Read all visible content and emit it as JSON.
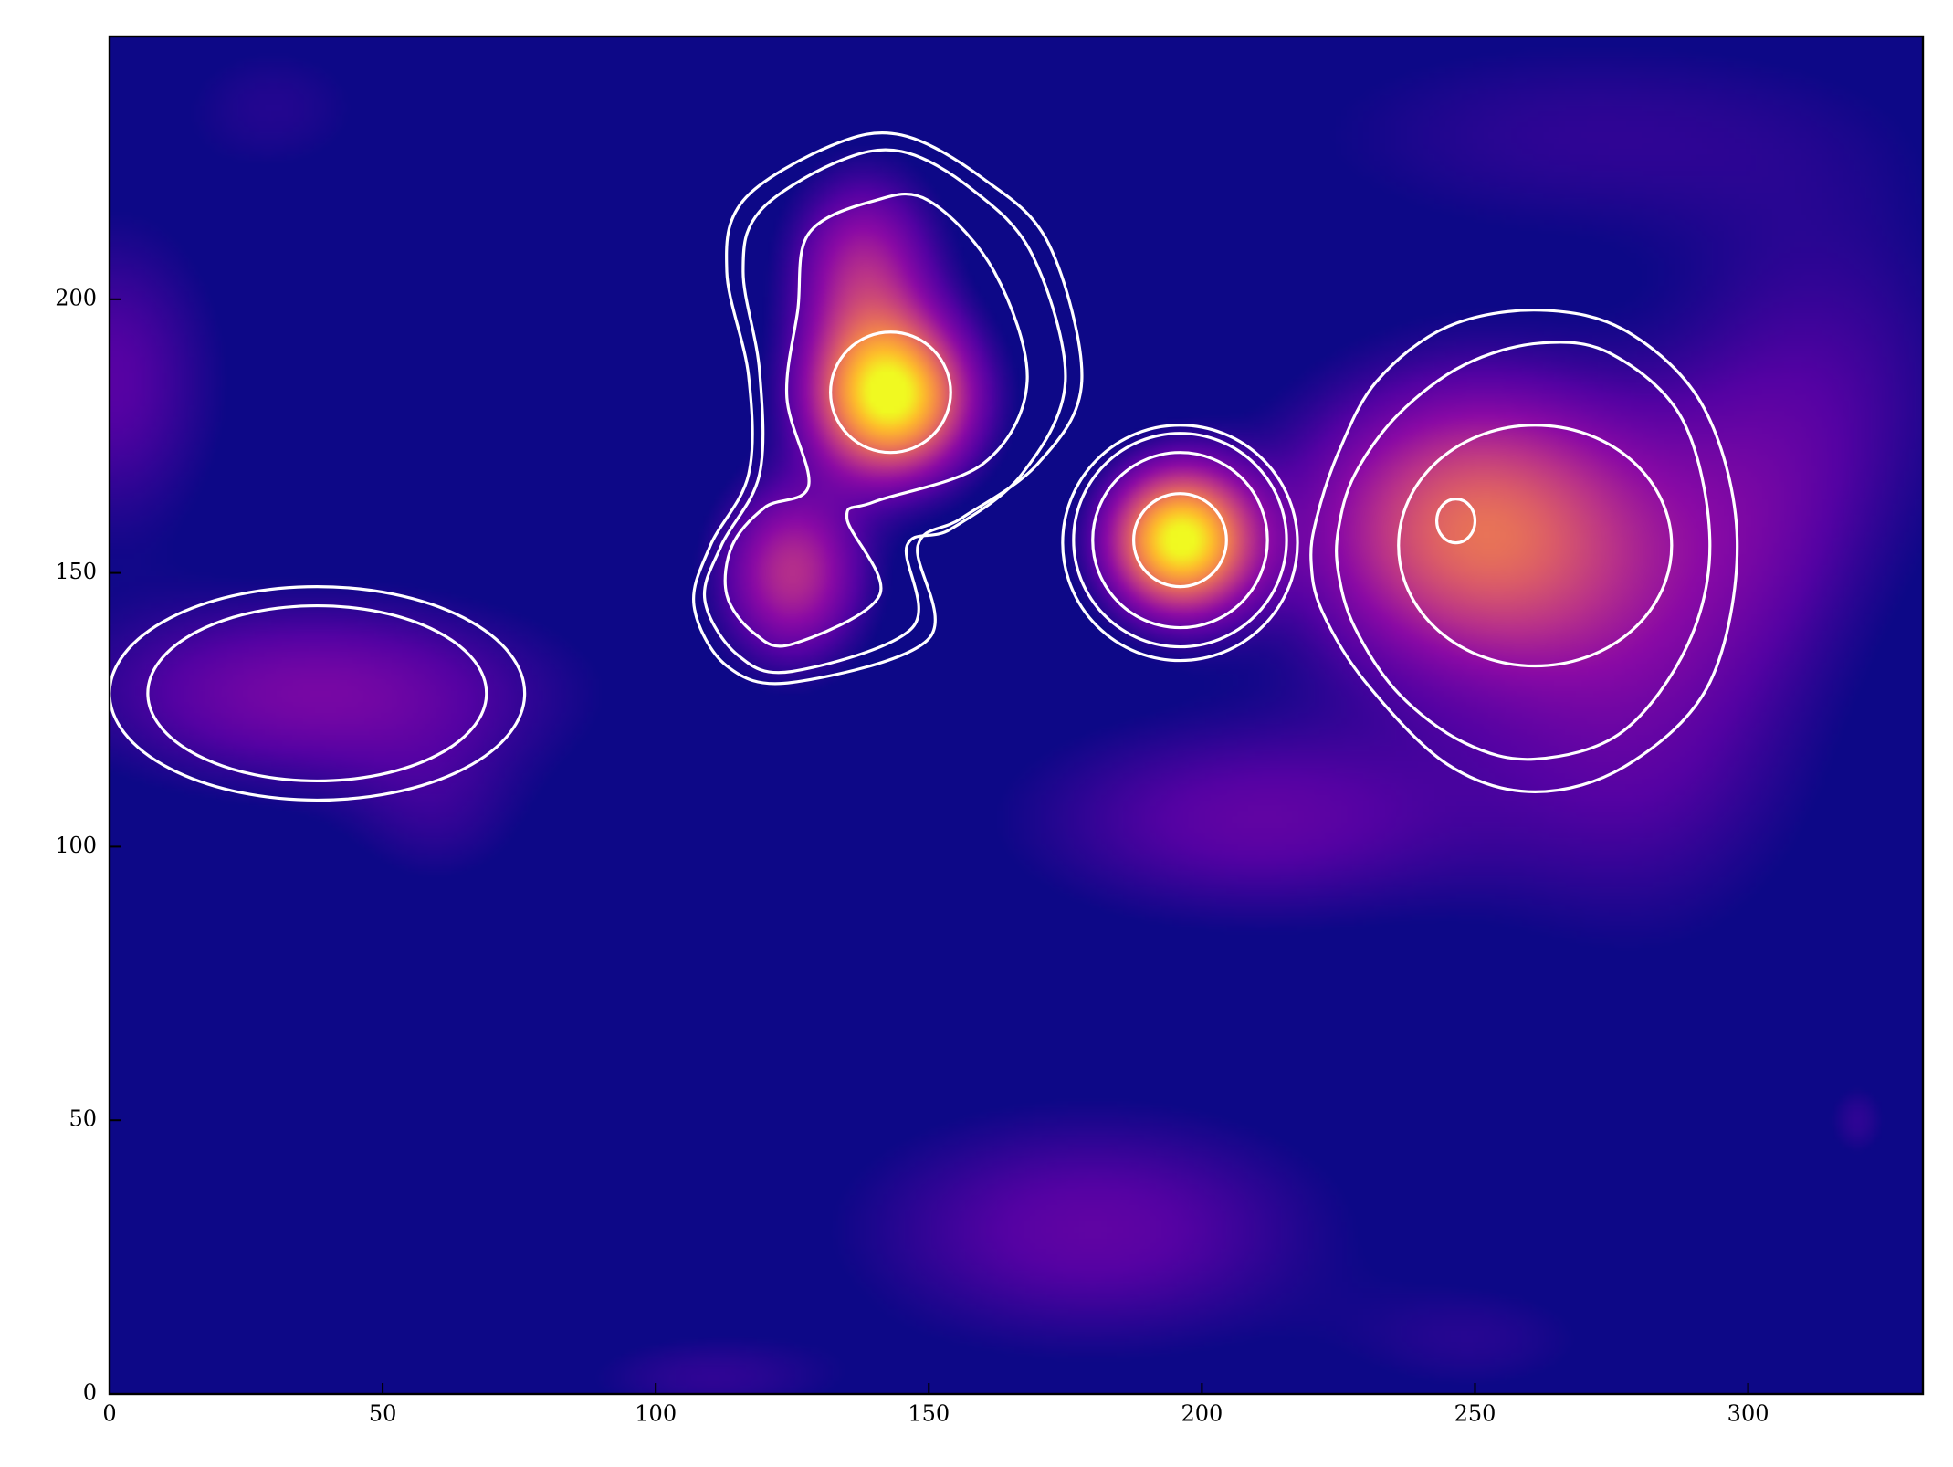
{
  "chart_data": {
    "type": "heatmap",
    "title": "",
    "xlabel": "",
    "ylabel": "",
    "xlim": [
      0,
      332
    ],
    "ylim": [
      0,
      248
    ],
    "xticks": [
      0,
      50,
      100,
      150,
      200,
      250,
      300
    ],
    "yticks": [
      0,
      50,
      100,
      150,
      200
    ],
    "xtick_labels": [
      "0",
      "50",
      "100",
      "150",
      "200",
      "250",
      "300"
    ],
    "ytick_labels": [
      "0",
      "50",
      "100",
      "150",
      "200"
    ],
    "colormap": "plasma",
    "colors": {
      "background": "#0d0887",
      "contour": "#ffffff",
      "axes": "#000000"
    },
    "grid": false,
    "legend": "none",
    "sources": [
      {
        "name": "peak-a",
        "x": 143,
        "y": 182,
        "sx": 10,
        "sy": 10,
        "amp": 1.0
      },
      {
        "name": "peak-a-lobe",
        "x": 125,
        "y": 150,
        "sx": 9,
        "sy": 11,
        "amp": 0.45
      },
      {
        "name": "peak-a-ridge",
        "x": 138,
        "y": 205,
        "sx": 9,
        "sy": 12,
        "amp": 0.4
      },
      {
        "name": "peak-b",
        "x": 196,
        "y": 156,
        "sx": 9,
        "sy": 9,
        "amp": 1.0
      },
      {
        "name": "peak-c",
        "x": 250,
        "y": 158,
        "sx": 22,
        "sy": 18,
        "amp": 0.62
      },
      {
        "name": "blob-left",
        "x": 38,
        "y": 128,
        "sx": 30,
        "sy": 12,
        "amp": 0.28
      }
    ],
    "diffuse": [
      {
        "x": 180,
        "y": 30,
        "sx": 30,
        "sy": 15,
        "amp": 0.22
      },
      {
        "x": 210,
        "y": 105,
        "sx": 30,
        "sy": 13,
        "amp": 0.22
      },
      {
        "x": 280,
        "y": 125,
        "sx": 22,
        "sy": 28,
        "amp": 0.2
      },
      {
        "x": 0,
        "y": 185,
        "sx": 14,
        "sy": 20,
        "amp": 0.2
      },
      {
        "x": 270,
        "y": 230,
        "sx": 40,
        "sy": 14,
        "amp": 0.12
      },
      {
        "x": 30,
        "y": 235,
        "sx": 14,
        "sy": 10,
        "amp": 0.1
      },
      {
        "x": 315,
        "y": 185,
        "sx": 20,
        "sy": 25,
        "amp": 0.14
      },
      {
        "x": 300,
        "y": 160,
        "sx": 15,
        "sy": 20,
        "amp": 0.12
      },
      {
        "x": 110,
        "y": 3,
        "sx": 18,
        "sy": 6,
        "amp": 0.12
      },
      {
        "x": 250,
        "y": 10,
        "sx": 18,
        "sy": 8,
        "amp": 0.1
      },
      {
        "x": 320,
        "y": 50,
        "sx": 4,
        "sy": 5,
        "amp": 0.12
      },
      {
        "x": 60,
        "y": 105,
        "sx": 12,
        "sy": 10,
        "amp": 0.1
      }
    ],
    "contours": [
      {
        "name": "blob-left",
        "levels": [
          {
            "type": "ellipse",
            "cx": 38,
            "cy": 128,
            "rx": 38,
            "ry": 19.5
          },
          {
            "type": "ellipse",
            "cx": 38,
            "cy": 128,
            "rx": 31,
            "ry": 16
          }
        ]
      },
      {
        "name": "peak-a",
        "levels": [
          {
            "type": "path",
            "points": [
              [
                125,
                130
              ],
              [
                150,
                138
              ],
              [
                148,
                155
              ],
              [
                156,
                160
              ],
              [
                170,
                170
              ],
              [
                178,
                185
              ],
              [
                172,
                210
              ],
              [
                160,
                222
              ],
              [
                145,
                230
              ],
              [
                132,
                228
              ],
              [
                116,
                218
              ],
              [
                113,
                205
              ],
              [
                117,
                186
              ],
              [
                117,
                168
              ],
              [
                110,
                155
              ],
              [
                107,
                144
              ],
              [
                113,
                133
              ]
            ]
          },
          {
            "type": "path",
            "points": [
              [
                125,
                132
              ],
              [
                147,
                140
              ],
              [
                146,
                155
              ],
              [
                154,
                158
              ],
              [
                167,
                168
              ],
              [
                175,
                185
              ],
              [
                169,
                208
              ],
              [
                158,
                220
              ],
              [
                145,
                227
              ],
              [
                133,
                225
              ],
              [
                119,
                216
              ],
              [
                116,
                205
              ],
              [
                119,
                187
              ],
              [
                119,
                168
              ],
              [
                112,
                155
              ],
              [
                109,
                145
              ],
              [
                115,
                135
              ]
            ]
          },
          {
            "type": "path",
            "points": [
              [
                125,
                137
              ],
              [
                141,
                146
              ],
              [
                135,
                160
              ],
              [
                140,
                163
              ],
              [
                160,
                170
              ],
              [
                168,
                185
              ],
              [
                162,
                205
              ],
              [
                150,
                218
              ],
              [
                140,
                218
              ],
              [
                128,
                212
              ],
              [
                126,
                198
              ],
              [
                124,
                182
              ],
              [
                128,
                166
              ],
              [
                120,
                162
              ],
              [
                114,
                155
              ],
              [
                113,
                146
              ],
              [
                118,
                139
              ]
            ]
          },
          {
            "type": "ellipse",
            "cx": 143,
            "cy": 183,
            "rx": 11,
            "ry": 11
          }
        ]
      },
      {
        "name": "peak-b",
        "levels": [
          {
            "type": "ellipse",
            "cx": 196,
            "cy": 155.5,
            "rx": 21.5,
            "ry": 21.5
          },
          {
            "type": "ellipse",
            "cx": 196,
            "cy": 156,
            "rx": 19.5,
            "ry": 19.5
          },
          {
            "type": "ellipse",
            "cx": 196,
            "cy": 156,
            "rx": 16,
            "ry": 16
          },
          {
            "type": "ellipse",
            "cx": 196,
            "cy": 156,
            "rx": 8.5,
            "ry": 8.5
          }
        ]
      },
      {
        "name": "peak-c",
        "levels": [
          {
            "type": "path",
            "points": [
              [
                220,
                152
              ],
              [
                222,
                143
              ],
              [
                230,
                130
              ],
              [
                245,
                115
              ],
              [
                261,
                110
              ],
              [
                278,
                115
              ],
              [
                293,
                130
              ],
              [
                298,
                156
              ],
              [
                292,
                180
              ],
              [
                278,
                194
              ],
              [
                262,
                198
              ],
              [
                245,
                195
              ],
              [
                232,
                185
              ],
              [
                225,
                172
              ],
              [
                221,
                160
              ]
            ]
          },
          {
            "type": "path",
            "points": [
              [
                225,
                150
              ],
              [
                228,
                140
              ],
              [
                236,
                128
              ],
              [
                248,
                119
              ],
              [
                261,
                116
              ],
              [
                277,
                121
              ],
              [
                289,
                137
              ],
              [
                293,
                156
              ],
              [
                288,
                178
              ],
              [
                275,
                190
              ],
              [
                262,
                192
              ],
              [
                248,
                188
              ],
              [
                236,
                179
              ],
              [
                228,
                168
              ],
              [
                225,
                158
              ]
            ]
          },
          {
            "type": "ellipse",
            "cx": 261,
            "cy": 155,
            "rx": 25,
            "ry": 22
          },
          {
            "type": "ellipse",
            "cx": 246.5,
            "cy": 159.5,
            "rx": 3.5,
            "ry": 4
          }
        ]
      }
    ]
  }
}
